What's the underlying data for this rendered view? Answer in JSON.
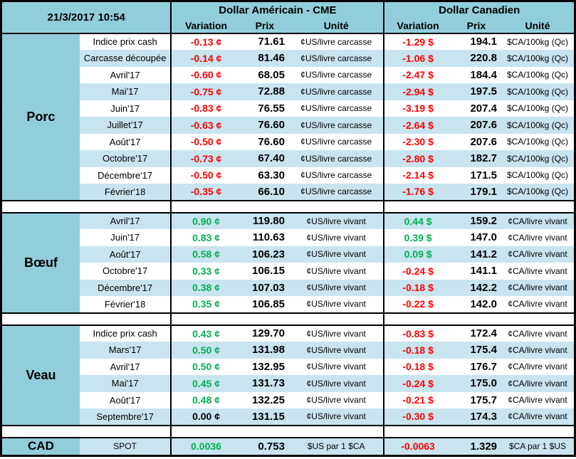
{
  "meta": {
    "timestamp": "21/3/2017 10:54"
  },
  "header": {
    "us_title": "Dollar Américain - CME",
    "ca_title": "Dollar Canadien",
    "columns": [
      "Variation",
      "Prix",
      "Unité"
    ]
  },
  "colors": {
    "header_blue": "#92CDDC",
    "band_blue": "#C8E4EF",
    "positive_green": "#00B050",
    "negative_red": "#FF0000"
  },
  "sections": [
    {
      "id": "porc",
      "name": "Porc",
      "first_band": "white",
      "rows": [
        {
          "label": "Indice prix cash",
          "us": {
            "variation": "-0.13 ¢",
            "prix": "71.61",
            "unite": "¢US/livre carcasse"
          },
          "ca": {
            "variation": "-1.29 $",
            "prix": "194.1",
            "unite": "$CA/100kg (Qc)"
          }
        },
        {
          "label": "Carcasse découpée",
          "us": {
            "variation": "-0.14 ¢",
            "prix": "81.46",
            "unite": "¢US/livre carcasse"
          },
          "ca": {
            "variation": "-1.06 $",
            "prix": "220.8",
            "unite": "$CA/100kg (Qc)"
          }
        },
        {
          "label": "Avril'17",
          "us": {
            "variation": "-0.60 ¢",
            "prix": "68.05",
            "unite": "¢US/livre carcasse"
          },
          "ca": {
            "variation": "-2.47 $",
            "prix": "184.4",
            "unite": "$CA/100kg (Qc)"
          }
        },
        {
          "label": "Mai'17",
          "us": {
            "variation": "-0.75 ¢",
            "prix": "72.88",
            "unite": "¢US/livre carcasse"
          },
          "ca": {
            "variation": "-2.94 $",
            "prix": "197.5",
            "unite": "$CA/100kg (Qc)"
          }
        },
        {
          "label": "Juin'17",
          "us": {
            "variation": "-0.83 ¢",
            "prix": "76.55",
            "unite": "¢US/livre carcasse"
          },
          "ca": {
            "variation": "-3.19 $",
            "prix": "207.4",
            "unite": "$CA/100kg (Qc)"
          }
        },
        {
          "label": "Juillet'17",
          "us": {
            "variation": "-0.63 ¢",
            "prix": "76.60",
            "unite": "¢US/livre carcasse"
          },
          "ca": {
            "variation": "-2.64 $",
            "prix": "207.6",
            "unite": "$CA/100kg (Qc)"
          }
        },
        {
          "label": "Août'17",
          "us": {
            "variation": "-0.50 ¢",
            "prix": "76.60",
            "unite": "¢US/livre carcasse"
          },
          "ca": {
            "variation": "-2.30 $",
            "prix": "207.6",
            "unite": "$CA/100kg (Qc)"
          }
        },
        {
          "label": "Octobre'17",
          "us": {
            "variation": "-0.73 ¢",
            "prix": "67.40",
            "unite": "¢US/livre carcasse"
          },
          "ca": {
            "variation": "-2.80 $",
            "prix": "182.7",
            "unite": "$CA/100kg (Qc)"
          }
        },
        {
          "label": "Décembre'17",
          "us": {
            "variation": "-0.50 ¢",
            "prix": "63.30",
            "unite": "¢US/livre carcasse"
          },
          "ca": {
            "variation": "-2.14 $",
            "prix": "171.5",
            "unite": "$CA/100kg (Qc)"
          }
        },
        {
          "label": "Février'18",
          "us": {
            "variation": "-0.35 ¢",
            "prix": "66.10",
            "unite": "¢US/livre carcasse"
          },
          "ca": {
            "variation": "-1.76 $",
            "prix": "179.1",
            "unite": "$CA/100kg (Qc)"
          }
        }
      ]
    },
    {
      "id": "boeuf",
      "name": "Bœuf",
      "first_band": "blue",
      "rows": [
        {
          "label": "Avril'17",
          "us": {
            "variation": "0.90 ¢",
            "prix": "119.80",
            "unite": "¢US/livre vivant"
          },
          "ca": {
            "variation": "0.44 $",
            "prix": "159.2",
            "unite": "¢CA/livre vivant"
          }
        },
        {
          "label": "Juin'17",
          "us": {
            "variation": "0.83 ¢",
            "prix": "110.63",
            "unite": "¢US/livre vivant"
          },
          "ca": {
            "variation": "0.39 $",
            "prix": "147.0",
            "unite": "¢CA/livre vivant"
          }
        },
        {
          "label": "Août'17",
          "us": {
            "variation": "0.58 ¢",
            "prix": "106.23",
            "unite": "¢US/livre vivant"
          },
          "ca": {
            "variation": "0.09 $",
            "prix": "141.2",
            "unite": "¢CA/livre vivant"
          }
        },
        {
          "label": "Octobre'17",
          "us": {
            "variation": "0.33 ¢",
            "prix": "106.15",
            "unite": "¢US/livre vivant"
          },
          "ca": {
            "variation": "-0.24 $",
            "prix": "141.1",
            "unite": "¢CA/livre vivant"
          }
        },
        {
          "label": "Décembre'17",
          "us": {
            "variation": "0.38 ¢",
            "prix": "107.03",
            "unite": "¢US/livre vivant"
          },
          "ca": {
            "variation": "-0.18 $",
            "prix": "142.2",
            "unite": "¢CA/livre vivant"
          }
        },
        {
          "label": "Février'18",
          "us": {
            "variation": "0.35 ¢",
            "prix": "106.85",
            "unite": "¢US/livre vivant"
          },
          "ca": {
            "variation": "-0.22 $",
            "prix": "142.0",
            "unite": "¢CA/livre vivant"
          }
        }
      ]
    },
    {
      "id": "veau",
      "name": "Veau",
      "first_band": "white",
      "rows": [
        {
          "label": "Indice prix cash",
          "us": {
            "variation": "0.43 ¢",
            "prix": "129.70",
            "unite": "¢US/livre vivant"
          },
          "ca": {
            "variation": "-0.83 $",
            "prix": "172.4",
            "unite": "¢CA/livre vivant"
          }
        },
        {
          "label": "Mars'17",
          "us": {
            "variation": "0.50 ¢",
            "prix": "131.98",
            "unite": "¢US/livre vivant"
          },
          "ca": {
            "variation": "-0.18 $",
            "prix": "175.4",
            "unite": "¢CA/livre vivant"
          }
        },
        {
          "label": "Avril'17",
          "us": {
            "variation": "0.50 ¢",
            "prix": "132.95",
            "unite": "¢US/livre vivant"
          },
          "ca": {
            "variation": "-0.18 $",
            "prix": "176.7",
            "unite": "¢CA/livre vivant"
          }
        },
        {
          "label": "Mai'17",
          "us": {
            "variation": "0.45 ¢",
            "prix": "131.73",
            "unite": "¢US/livre vivant"
          },
          "ca": {
            "variation": "-0.24 $",
            "prix": "175.0",
            "unite": "¢CA/livre vivant"
          }
        },
        {
          "label": "Août'17",
          "us": {
            "variation": "0.48 ¢",
            "prix": "132.25",
            "unite": "¢US/livre vivant"
          },
          "ca": {
            "variation": "-0.21 $",
            "prix": "175.7",
            "unite": "¢CA/livre vivant"
          }
        },
        {
          "label": "Septembre'17",
          "us": {
            "variation": "0.00 ¢",
            "prix": "131.15",
            "unite": "¢US/livre vivant"
          },
          "ca": {
            "variation": "-0.30 $",
            "prix": "174.3",
            "unite": "¢CA/livre vivant"
          }
        }
      ]
    },
    {
      "id": "cad",
      "name": "CAD",
      "first_band": "blue",
      "rows": [
        {
          "label": "SPOT",
          "us": {
            "variation": "0.0036",
            "prix": "0.753",
            "unite": "$US par 1 $CA"
          },
          "ca": {
            "variation": "-0.0063",
            "prix": "1.329",
            "unite": "$CA par 1 $US"
          }
        }
      ]
    }
  ]
}
